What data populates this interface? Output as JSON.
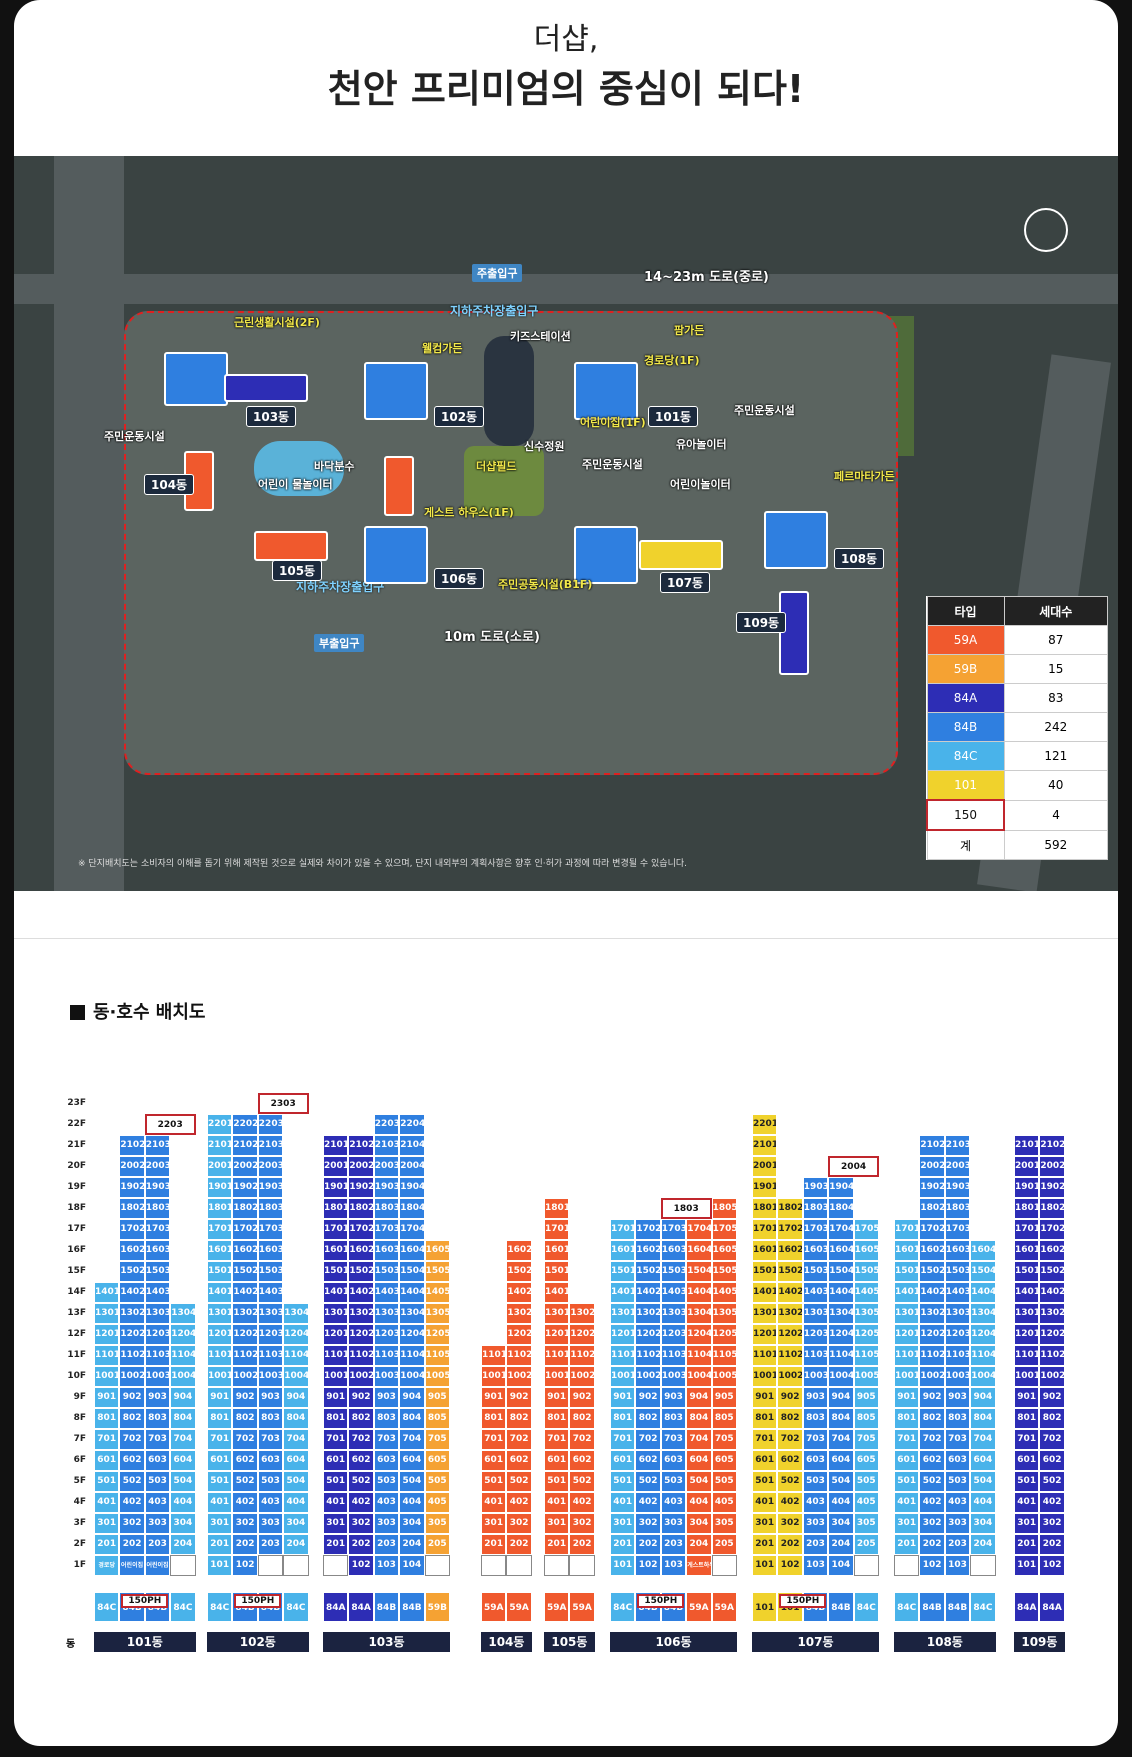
{
  "header": {
    "subtitle": "더샵,",
    "title": "천안 프리미엄의 중심이 되다!"
  },
  "colors": {
    "59A": "#f0592d",
    "59B": "#f5a233",
    "84A": "#2d2db5",
    "84B": "#2f7fe0",
    "84C": "#49b3ea",
    "101": "#f0d22c",
    "150": "#ffffff"
  },
  "map": {
    "roads": {
      "main": "14~23m 도로(중로)",
      "small": "10m 도로(소로)"
    },
    "gates": {
      "main": "주출입구",
      "sub": "부출입구",
      "parking1": "지하주차장출입구",
      "parking2": "지하주차장출입구"
    },
    "facilities": [
      "근린생활시설(2F)",
      "웰컴가든",
      "키즈스테이션",
      "팜가든",
      "경로당(1F)",
      "어린이집(1F)",
      "주민운동시설",
      "주민운동시설",
      "바닥분수",
      "어린이 물놀이터",
      "더샵필드",
      "신수정원",
      "주민운동시설",
      "유아놀이터",
      "어린이놀이터",
      "페르마타가든",
      "게스트 하우스(1F)",
      "주민공동시설(B1F)"
    ],
    "dongs": [
      "101동",
      "102동",
      "103동",
      "104동",
      "105동",
      "106동",
      "107동",
      "108동",
      "109동"
    ],
    "note": "※ 단지배치도는 소비자의 이해를 돕기 위해 제작된 것으로 실제와 차이가 있을 수 있으며, 단지 내외부의 계획사항은 향후 인·허가 과정에 따라 변경될 수 있습니다.",
    "legend": {
      "headers": [
        "타입",
        "세대수"
      ],
      "rows": [
        [
          "59A",
          "87"
        ],
        [
          "59B",
          "15"
        ],
        [
          "84A",
          "83"
        ],
        [
          "84B",
          "242"
        ],
        [
          "84C",
          "121"
        ],
        [
          "101",
          "40"
        ],
        [
          "150",
          "4"
        ],
        [
          "계",
          "592"
        ]
      ]
    }
  },
  "plan": {
    "title": "동·호수 배치도",
    "dong_label": "동",
    "floors": [
      "23F",
      "22F",
      "21F",
      "20F",
      "19F",
      "18F",
      "17F",
      "16F",
      "15F",
      "14F",
      "13F",
      "12F",
      "11F",
      "10F",
      "9F",
      "8F",
      "7F",
      "6F",
      "5F",
      "4F",
      "3F",
      "2F",
      "1F"
    ],
    "ph_label": "150PH",
    "dongs": [
      {
        "name": "101동",
        "types": [
          "84C",
          "84B",
          "84B",
          "84C"
        ],
        "ph": "2203",
        "lines": [
          [
            2,
            14,
            "84C"
          ],
          [
            2,
            21,
            "84B"
          ],
          [
            2,
            21,
            "84B"
          ],
          [
            2,
            13,
            "84C"
          ]
        ],
        "ground": [
          "경로당",
          "어린이집",
          "어린이집",
          ""
        ]
      },
      {
        "name": "102동",
        "types": [
          "84C",
          "84B",
          "84B",
          "84C"
        ],
        "ph": "2303",
        "lines": [
          [
            1,
            22,
            "84C"
          ],
          [
            1,
            22,
            "84B"
          ],
          [
            2,
            22,
            "84B"
          ],
          [
            2,
            13,
            "84C"
          ]
        ],
        "ground": [
          "",
          "",
          "",
          ""
        ]
      },
      {
        "name": "103동",
        "types": [
          "84A",
          "84A",
          "84B",
          "84B",
          "59B"
        ],
        "ph": "",
        "lines": [
          [
            2,
            21,
            "84A"
          ],
          [
            1,
            21,
            "84A"
          ],
          [
            1,
            22,
            "84B"
          ],
          [
            1,
            22,
            "84B"
          ],
          [
            2,
            16,
            "59B"
          ]
        ],
        "ground": [
          "",
          "",
          "",
          "",
          ""
        ]
      },
      {
        "name": "104동",
        "types": [
          "59A",
          "59A"
        ],
        "ph": "",
        "lines": [
          [
            2,
            11,
            "59A"
          ],
          [
            2,
            16,
            "59A"
          ]
        ],
        "ground": [
          "",
          ""
        ]
      },
      {
        "name": "105동",
        "types": [
          "59A",
          "59A"
        ],
        "ph": "",
        "lines": [
          [
            2,
            18,
            "59A"
          ],
          [
            2,
            13,
            "59A"
          ]
        ],
        "ground": [
          "",
          ""
        ]
      },
      {
        "name": "106동",
        "types": [
          "84C",
          "84B",
          "84B",
          "59A",
          "59A"
        ],
        "ph": "1803",
        "lines": [
          [
            1,
            17,
            "84C"
          ],
          [
            1,
            17,
            "84B"
          ],
          [
            1,
            17,
            "84B"
          ],
          [
            2,
            18,
            "59A"
          ],
          [
            2,
            18,
            "59A"
          ]
        ],
        "ground": [
          "",
          "",
          "",
          "게스트하우스",
          ""
        ]
      },
      {
        "name": "107동",
        "types": [
          "101",
          "101",
          "84B",
          "84B",
          "84C"
        ],
        "ph": "2004",
        "lines": [
          [
            1,
            22,
            "101"
          ],
          [
            1,
            18,
            "101"
          ],
          [
            1,
            19,
            "84B"
          ],
          [
            1,
            19,
            "84B"
          ],
          [
            2,
            17,
            "84C"
          ]
        ],
        "ground": [
          "",
          "",
          "",
          "",
          ""
        ]
      },
      {
        "name": "108동",
        "types": [
          "84C",
          "84B",
          "84B",
          "84C"
        ],
        "ph": "",
        "lines": [
          [
            2,
            17,
            "84C"
          ],
          [
            1,
            21,
            "84B"
          ],
          [
            1,
            21,
            "84B"
          ],
          [
            2,
            16,
            "84C"
          ]
        ],
        "ground": [
          "",
          "",
          "",
          ""
        ]
      },
      {
        "name": "109동",
        "types": [
          "84A",
          "84A"
        ],
        "ph": "",
        "lines": [
          [
            1,
            21,
            "84A"
          ],
          [
            1,
            21,
            "84A"
          ]
        ],
        "ground": [
          "",
          ""
        ]
      }
    ]
  }
}
